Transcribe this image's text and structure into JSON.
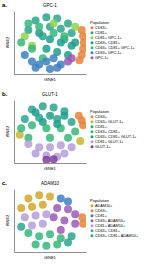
{
  "chart_data": [
    {
      "type": "scatter",
      "panel_label": "a.",
      "title": "GPC-1",
      "x_label": "tSNE1",
      "y_label": "tSNE2",
      "legend_title": "Population",
      "legend": "right",
      "tick_labels": false,
      "xlim": [
        -50,
        50
      ],
      "ylim": [
        -50,
        50
      ],
      "series": [
        {
          "name": "CD63+",
          "color": "#e8833a",
          "x": [
            44,
            46,
            47,
            46,
            44,
            41
          ],
          "values": [
            20,
            10,
            0,
            -10,
            -20,
            -28
          ]
        },
        {
          "name": "CD81+",
          "color": "#2ca58d",
          "x": [
            -20,
            -5,
            10,
            25,
            -30,
            0,
            15,
            30,
            -10,
            20
          ],
          "values": [
            35,
            40,
            38,
            30,
            20,
            25,
            22,
            15,
            10,
            5
          ]
        },
        {
          "name": "CD81+ GPC-1+",
          "color": "#8fd14f",
          "x": [
            -35,
            -25,
            5,
            35
          ],
          "values": [
            10,
            -5,
            30,
            25
          ]
        },
        {
          "name": "CD63+ CD81+",
          "color": "#1f9e89",
          "x": [
            -15,
            0,
            15,
            30,
            -5,
            10,
            25,
            35
          ],
          "values": [
            15,
            5,
            0,
            -5,
            -10,
            -15,
            -20,
            0
          ]
        },
        {
          "name": "CD63+ CD81+ GPC-1+",
          "color": "#35b779",
          "x": [
            -30,
            -15,
            5,
            20,
            -40,
            -25,
            -10
          ],
          "values": [
            30,
            25,
            15,
            10,
            0,
            -10,
            -25
          ]
        },
        {
          "name": "CD63+ GPC-1+",
          "color": "#3e7fc1",
          "x": [
            -35,
            -25,
            -15,
            -5,
            5,
            15,
            -20,
            0,
            10
          ],
          "values": [
            -20,
            -30,
            -35,
            -30,
            -25,
            -35,
            -40,
            -42,
            -40
          ]
        },
        {
          "name": "GPC-1+",
          "color": "#9b59b6",
          "x": [
            25,
            30
          ],
          "values": [
            -30,
            -25
          ]
        }
      ]
    },
    {
      "type": "scatter",
      "panel_label": "b.",
      "title": "GLUT-1",
      "x_label": "tSNE1",
      "y_label": "tSNE2",
      "legend_title": "Population",
      "legend": "right",
      "tick_labels": false,
      "xlim": [
        -50,
        50
      ],
      "ylim": [
        -50,
        50
      ],
      "series": [
        {
          "name": "CD63+",
          "color": "#e8833a",
          "x": [
            40,
            44,
            46
          ],
          "values": [
            25,
            18,
            10
          ]
        },
        {
          "name": "CD63+ GLUT-1+",
          "color": "#c8b631",
          "x": [
            -42,
            42
          ],
          "values": [
            -5,
            -15
          ]
        },
        {
          "name": "CD81+",
          "color": "#2ca58d",
          "x": [
            -25,
            -10,
            5,
            20,
            -35,
            -15,
            10,
            30
          ],
          "values": [
            35,
            40,
            38,
            32,
            20,
            22,
            20,
            15
          ]
        },
        {
          "name": "CD63+ CD81+",
          "color": "#35b779",
          "x": [
            -40,
            -25,
            -5,
            15,
            35,
            -30,
            0,
            25
          ],
          "values": [
            5,
            10,
            5,
            5,
            0,
            -10,
            -10,
            -10
          ]
        },
        {
          "name": "CD63+ CD81+ GLUT-1+",
          "color": "#1f9e89",
          "x": [
            -20,
            0,
            20,
            -10,
            10
          ],
          "values": [
            30,
            25,
            25,
            15,
            12
          ]
        },
        {
          "name": "CD81+ GLUT-1+",
          "color": "#b49ddb",
          "x": [
            -30,
            -15,
            0,
            15,
            30,
            -20,
            -5,
            10,
            20
          ],
          "values": [
            -20,
            -25,
            -25,
            -22,
            -25,
            -35,
            -38,
            -40,
            -35
          ]
        },
        {
          "name": "GLUT-1+",
          "color": "#7b3fa0",
          "x": [
            -5,
            5
          ],
          "values": [
            -45,
            -44
          ]
        }
      ]
    },
    {
      "type": "scatter",
      "panel_label": "c.",
      "title": "ADAM10",
      "x_label": "tSNE1",
      "y_label": "tSNE2",
      "legend_title": "Population",
      "legend": "right",
      "tick_labels": false,
      "xlim": [
        -50,
        50
      ],
      "ylim": [
        -50,
        50
      ],
      "series": [
        {
          "name": "ADAM10+",
          "color": "#d4a72c",
          "x": [
            -30,
            -15,
            0,
            -40,
            -25,
            -10
          ],
          "values": [
            35,
            40,
            38,
            20,
            22,
            25
          ]
        },
        {
          "name": "CD63+",
          "color": "#e8833a",
          "x": [
            45,
            46
          ],
          "values": [
            5,
            -5
          ]
        },
        {
          "name": "CD81+",
          "color": "#3e7fc1",
          "x": [
            15,
            25
          ],
          "values": [
            35,
            30
          ]
        },
        {
          "name": "CD63+ ADAM10+",
          "color": "#9b59b6",
          "x": [
            10,
            25,
            35,
            5,
            20,
            35,
            15
          ],
          "values": [
            20,
            18,
            10,
            5,
            0,
            -5,
            -15
          ]
        },
        {
          "name": "CD81+ ADAM10+",
          "color": "#b49ddb",
          "x": [
            -35,
            -20,
            -5,
            -25,
            -10
          ],
          "values": [
            5,
            8,
            10,
            -8,
            -5
          ]
        },
        {
          "name": "CD63+ CD81+",
          "color": "#35b779",
          "x": [
            -30,
            -15,
            0,
            15,
            -20,
            -5,
            10
          ],
          "values": [
            -20,
            -25,
            -22,
            -28,
            -38,
            -40,
            -38
          ]
        },
        {
          "name": "CD63+ CD81+ ADAM10+",
          "color": "#2ca58d",
          "x": [
            -40,
            30,
            25
          ],
          "values": [
            -10,
            -25,
            -35
          ]
        }
      ]
    }
  ]
}
